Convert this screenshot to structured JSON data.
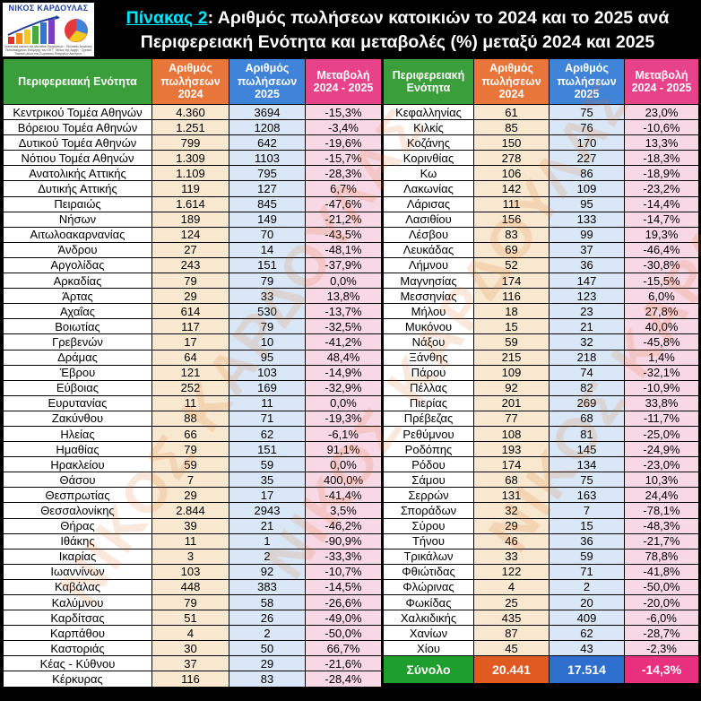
{
  "logo": {
    "name": "ΝΙΚΟΣ ΚΑΡΔΟΥΛΑΣ",
    "lines": [
      "Στατιστική έρευνα της Μονάδας Εκτιμήσεων · Πολιτικός Αναλυτής",
      "Πιστοποιημένος Εκτιμητής του ΟΚΤ · Μέλος της Αρχής · Σχετικά",
      "Τακτικό μέλος του Σωματείου Εκτιμητών Ακινήτων"
    ]
  },
  "title": {
    "prefix": "Πίνακας 2",
    "line1_rest": ": Αριθμός πωλήσεων κατοικιών το 2024 και το 2025 ανά",
    "line2": "Περιφερειακή Ενότητα και μεταβολές (%) μεταξύ 2024 και 2025"
  },
  "watermark": "ΝΙΚΟΣ ΚΑΡΔΟΥΛΑΣ",
  "columns": {
    "name": "Περιφερειακή Ενότητα",
    "name_right": "Περιφερειακή Ενότητα",
    "sales2024": "Αριθμός πωλήσεων 2024",
    "sales2025": "Αριθμός πωλήσεων 2025",
    "change": "Μεταβολή 2024 - 2025"
  },
  "left_rows": [
    [
      "Κεντρικού Τομέα Αθηνών",
      "4.360",
      "3694",
      "-15,3%"
    ],
    [
      "Βόρειου Τομέα Αθηνών",
      "1.251",
      "1208",
      "-3,4%"
    ],
    [
      "Δυτικού Τομέα Αθηνών",
      "799",
      "642",
      "-19,6%"
    ],
    [
      "Νότιου Τομέα Αθηνών",
      "1.309",
      "1103",
      "-15,7%"
    ],
    [
      "Ανατολικής Αττικής",
      "1.109",
      "795",
      "-28,3%"
    ],
    [
      "Δυτικής Αττικής",
      "119",
      "127",
      "6,7%"
    ],
    [
      "Πειραιώς",
      "1.614",
      "845",
      "-47,6%"
    ],
    [
      "Νήσων",
      "189",
      "149",
      "-21,2%"
    ],
    [
      "Αιτωλοακαρνανίας",
      "124",
      "70",
      "-43,5%"
    ],
    [
      "Άνδρου",
      "27",
      "14",
      "-48,1%"
    ],
    [
      "Αργολίδας",
      "243",
      "151",
      "-37,9%"
    ],
    [
      "Αρκαδίας",
      "79",
      "79",
      "0,0%"
    ],
    [
      "Άρτας",
      "29",
      "33",
      "13,8%"
    ],
    [
      "Αχαΐας",
      "614",
      "530",
      "-13,7%"
    ],
    [
      "Βοιωτίας",
      "117",
      "79",
      "-32,5%"
    ],
    [
      "Γρεβενών",
      "17",
      "10",
      "-41,2%"
    ],
    [
      "Δράμας",
      "64",
      "95",
      "48,4%"
    ],
    [
      "Έβρου",
      "121",
      "103",
      "-14,9%"
    ],
    [
      "Εύβοιας",
      "252",
      "169",
      "-32,9%"
    ],
    [
      "Ευρυτανίας",
      "11",
      "11",
      "0,0%"
    ],
    [
      "Ζακύνθου",
      "88",
      "71",
      "-19,3%"
    ],
    [
      "Ηλείας",
      "66",
      "62",
      "-6,1%"
    ],
    [
      "Ημαθίας",
      "79",
      "151",
      "91,1%"
    ],
    [
      "Ηρακλείου",
      "59",
      "59",
      "0,0%"
    ],
    [
      "Θάσου",
      "7",
      "35",
      "400,0%"
    ],
    [
      "Θεσπρωτίας",
      "29",
      "17",
      "-41,4%"
    ],
    [
      "Θεσσαλονίκης",
      "2.844",
      "2943",
      "3,5%"
    ],
    [
      "Θήρας",
      "39",
      "21",
      "-46,2%"
    ],
    [
      "Ιθάκης",
      "11",
      "1",
      "-90,9%"
    ],
    [
      "Ικαρίας",
      "3",
      "2",
      "-33,3%"
    ],
    [
      "Ιωαννίνων",
      "103",
      "92",
      "-10,7%"
    ],
    [
      "Καβάλας",
      "448",
      "383",
      "-14,5%"
    ],
    [
      "Καλύμνου",
      "79",
      "58",
      "-26,6%"
    ],
    [
      "Καρδίτσας",
      "51",
      "26",
      "-49,0%"
    ],
    [
      "Καρπάθου",
      "4",
      "2",
      "-50,0%"
    ],
    [
      "Καστοριάς",
      "30",
      "50",
      "66,7%"
    ],
    [
      "Κέας - Κύθνου",
      "37",
      "29",
      "-21,6%"
    ],
    [
      "Κέρκυρας",
      "116",
      "83",
      "-28,4%"
    ]
  ],
  "right_rows": [
    [
      "Κεφαλληνίας",
      "61",
      "75",
      "23,0%"
    ],
    [
      "Κιλκίς",
      "85",
      "76",
      "-10,6%"
    ],
    [
      "Κοζάνης",
      "150",
      "170",
      "13,3%"
    ],
    [
      "Κορινθίας",
      "278",
      "227",
      "-18,3%"
    ],
    [
      "Κω",
      "106",
      "86",
      "-18,9%"
    ],
    [
      "Λακωνίας",
      "142",
      "109",
      "-23,2%"
    ],
    [
      "Λάρισας",
      "111",
      "95",
      "-14,4%"
    ],
    [
      "Λασιθίου",
      "156",
      "133",
      "-14,7%"
    ],
    [
      "Λέσβου",
      "83",
      "99",
      "19,3%"
    ],
    [
      "Λευκάδας",
      "69",
      "37",
      "-46,4%"
    ],
    [
      "Λήμνου",
      "52",
      "36",
      "-30,8%"
    ],
    [
      "Μαγνησίας",
      "174",
      "147",
      "-15,5%"
    ],
    [
      "Μεσσηνίας",
      "116",
      "123",
      "6,0%"
    ],
    [
      "Μήλου",
      "18",
      "23",
      "27,8%"
    ],
    [
      "Μυκόνου",
      "15",
      "21",
      "40,0%"
    ],
    [
      "Νάξου",
      "59",
      "32",
      "-45,8%"
    ],
    [
      "Ξάνθης",
      "215",
      "218",
      "1,4%"
    ],
    [
      "Πάρου",
      "109",
      "74",
      "-32,1%"
    ],
    [
      "Πέλλας",
      "92",
      "82",
      "-10,9%"
    ],
    [
      "Πιερίας",
      "201",
      "269",
      "33,8%"
    ],
    [
      "Πρέβεζας",
      "77",
      "68",
      "-11,7%"
    ],
    [
      "Ρεθύμνου",
      "108",
      "81",
      "-25,0%"
    ],
    [
      "Ροδόπης",
      "193",
      "145",
      "-24,9%"
    ],
    [
      "Ρόδου",
      "174",
      "134",
      "-23,0%"
    ],
    [
      "Σάμου",
      "68",
      "75",
      "10,3%"
    ],
    [
      "Σερρών",
      "131",
      "163",
      "24,4%"
    ],
    [
      "Σποράδων",
      "32",
      "7",
      "-78,1%"
    ],
    [
      "Σύρου",
      "29",
      "15",
      "-48,3%"
    ],
    [
      "Τήνου",
      "46",
      "36",
      "-21,7%"
    ],
    [
      "Τρικάλων",
      "33",
      "59",
      "78,8%"
    ],
    [
      "Φθιώτιδας",
      "122",
      "71",
      "-41,8%"
    ],
    [
      "Φλώρινας",
      "4",
      "2",
      "-50,0%"
    ],
    [
      "Φωκίδας",
      "25",
      "20",
      "-20,0%"
    ],
    [
      "Χαλκιδικής",
      "435",
      "409",
      "-6,0%"
    ],
    [
      "Χανίων",
      "87",
      "62",
      "-28,7%"
    ],
    [
      "Χίου",
      "45",
      "43",
      "-2,3%"
    ]
  ],
  "total": {
    "label": "Σύνολο",
    "sales2024": "20.441",
    "sales2025": "17.514",
    "change": "-14,3%"
  }
}
